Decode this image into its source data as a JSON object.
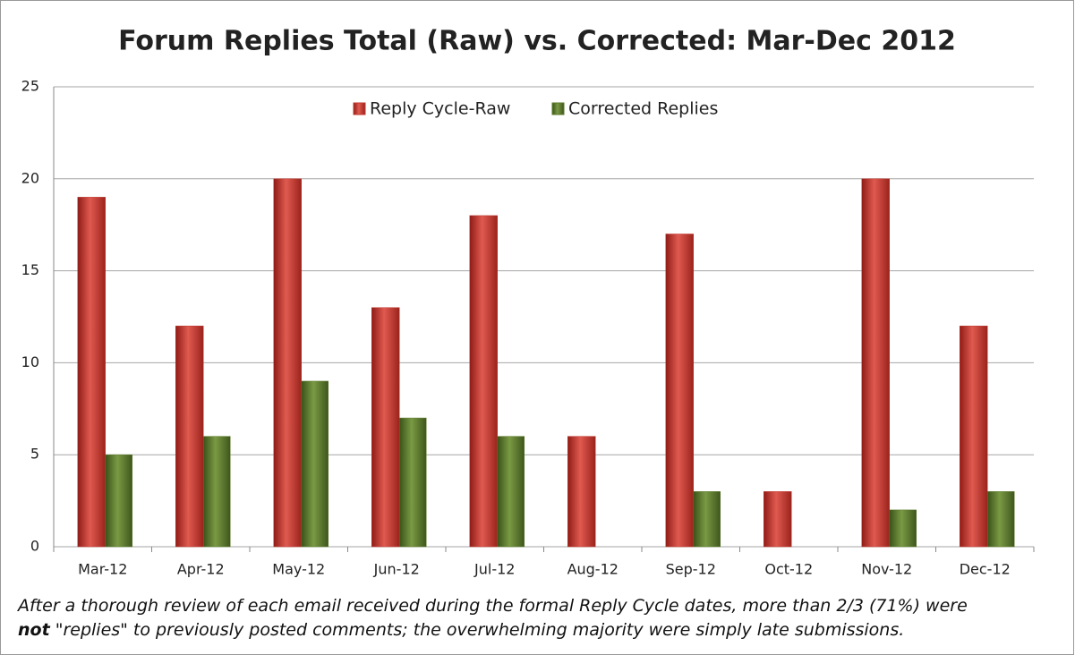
{
  "chart_data": {
    "type": "bar",
    "title": "Forum Replies Total (Raw) vs. Corrected: Mar-Dec 2012",
    "categories": [
      "Mar-12",
      "Apr-12",
      "May-12",
      "Jun-12",
      "Jul-12",
      "Aug-12",
      "Sep-12",
      "Oct-12",
      "Nov-12",
      "Dec-12"
    ],
    "series": [
      {
        "name": "Reply Cycle-Raw",
        "color": "#c0392f",
        "values": [
          19,
          12,
          20,
          13,
          18,
          6,
          17,
          3,
          20,
          12
        ]
      },
      {
        "name": "Corrected Replies",
        "color": "#5a7a2a",
        "values": [
          5,
          6,
          9,
          7,
          6,
          0,
          3,
          0,
          2,
          3
        ]
      }
    ],
    "ylim": [
      0,
      25
    ],
    "yticks": [
      0,
      5,
      10,
      15,
      20,
      25
    ],
    "grid": true,
    "legend": "top",
    "note": [
      "After a thorough review of each email received during the formal Reply Cycle dates, more than 2/3 (71%) were ",
      "not",
      " \"replies\" to previously posted comments; the overwhelming majority were simply late submissions."
    ]
  }
}
